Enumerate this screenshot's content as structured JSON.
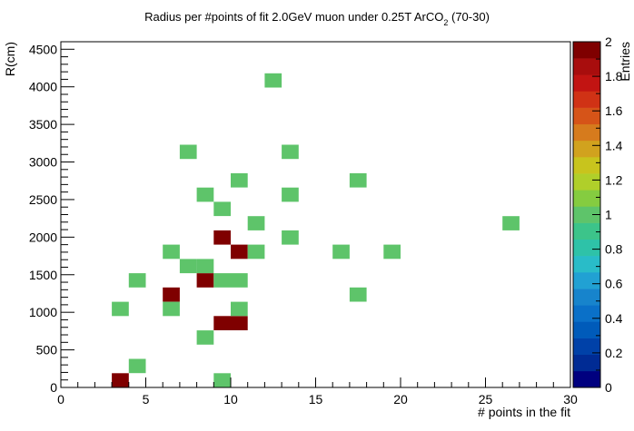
{
  "chart_data": {
    "type": "heatmap",
    "title": "Radius per #points of fit 2.0GeV muon under 0.25T ArCO",
    "title_sub": "2",
    "title_tail": " (70-30)",
    "xlabel": "# points in the fit",
    "ylabel": "R(cm)",
    "zlabel": "Entries",
    "xlim": [
      0,
      30
    ],
    "ylim": [
      0,
      4600
    ],
    "zlim": [
      0,
      2
    ],
    "x_bin_width": 1,
    "y_bin_width": 190,
    "x_ticks": [
      "0",
      "5",
      "10",
      "15",
      "20",
      "25",
      "30"
    ],
    "y_ticks": [
      "0",
      "500",
      "1000",
      "1500",
      "2000",
      "2500",
      "3000",
      "3500",
      "4000",
      "4500"
    ],
    "z_ticks": [
      "0",
      "0.2",
      "0.4",
      "0.6",
      "0.8",
      "1",
      "1.2",
      "1.4",
      "1.6",
      "1.8",
      "2"
    ],
    "grid": false,
    "colormap": [
      "#00007f",
      "#002b94",
      "#0041a8",
      "#005bba",
      "#0a70c8",
      "#1784cc",
      "#21a1d3",
      "#29bcc8",
      "#2ec2a8",
      "#3cc48a",
      "#5ec46a",
      "#85cc40",
      "#b0cf2a",
      "#c8c41d",
      "#d1a21e",
      "#d67b1d",
      "#d65418",
      "#d03215",
      "#c21412",
      "#a80d0d",
      "#7f0000"
    ],
    "cells": [
      {
        "x": 3.5,
        "y": 95,
        "z": 2
      },
      {
        "x": 4.5,
        "y": 285,
        "z": 1
      },
      {
        "x": 9.5,
        "y": 95,
        "z": 1
      },
      {
        "x": 8.5,
        "y": 665,
        "z": 1
      },
      {
        "x": 9.5,
        "y": 855,
        "z": 2
      },
      {
        "x": 10.5,
        "y": 855,
        "z": 2
      },
      {
        "x": 3.5,
        "y": 1045,
        "z": 1
      },
      {
        "x": 6.5,
        "y": 1045,
        "z": 1
      },
      {
        "x": 10.5,
        "y": 1045,
        "z": 1
      },
      {
        "x": 6.5,
        "y": 1235,
        "z": 2
      },
      {
        "x": 17.5,
        "y": 1235,
        "z": 1
      },
      {
        "x": 4.5,
        "y": 1425,
        "z": 1
      },
      {
        "x": 8.5,
        "y": 1425,
        "z": 2
      },
      {
        "x": 9.5,
        "y": 1425,
        "z": 1
      },
      {
        "x": 10.5,
        "y": 1425,
        "z": 1
      },
      {
        "x": 7.5,
        "y": 1615,
        "z": 1
      },
      {
        "x": 8.5,
        "y": 1615,
        "z": 1
      },
      {
        "x": 6.5,
        "y": 1805,
        "z": 1
      },
      {
        "x": 10.5,
        "y": 1805,
        "z": 2
      },
      {
        "x": 11.5,
        "y": 1805,
        "z": 1
      },
      {
        "x": 16.5,
        "y": 1805,
        "z": 1
      },
      {
        "x": 19.5,
        "y": 1805,
        "z": 1
      },
      {
        "x": 9.5,
        "y": 1995,
        "z": 2
      },
      {
        "x": 13.5,
        "y": 1995,
        "z": 1
      },
      {
        "x": 11.5,
        "y": 2185,
        "z": 1
      },
      {
        "x": 26.5,
        "y": 2185,
        "z": 1
      },
      {
        "x": 9.5,
        "y": 2375,
        "z": 1
      },
      {
        "x": 8.5,
        "y": 2565,
        "z": 1
      },
      {
        "x": 13.5,
        "y": 2565,
        "z": 1
      },
      {
        "x": 10.5,
        "y": 2755,
        "z": 1
      },
      {
        "x": 17.5,
        "y": 2755,
        "z": 1
      },
      {
        "x": 7.5,
        "y": 3135,
        "z": 1
      },
      {
        "x": 13.5,
        "y": 3135,
        "z": 1
      },
      {
        "x": 12.5,
        "y": 4085,
        "z": 1
      }
    ]
  }
}
